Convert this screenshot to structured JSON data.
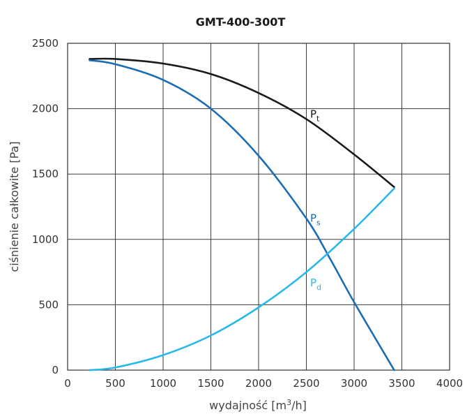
{
  "chart_data": {
    "type": "line",
    "title": "GMT-400-300T",
    "xlabel_prefix": "wydajność [m",
    "xlabel_sup": "3",
    "xlabel_suffix": "/h]",
    "ylabel": "ciśnienie całkowite [Pa]",
    "xlim": [
      0,
      4000
    ],
    "ylim": [
      0,
      2500
    ],
    "x_ticks": [
      0,
      500,
      1000,
      1500,
      2000,
      2500,
      3000,
      3500,
      4000
    ],
    "y_ticks": [
      0,
      500,
      1000,
      1500,
      2000,
      2500
    ],
    "grid": true,
    "series": [
      {
        "name": "Pt",
        "label_main": "P",
        "label_sub": "t",
        "color": "#1a1a1a",
        "x": [
          230,
          500,
          1000,
          1500,
          2000,
          2500,
          3000,
          3420
        ],
        "y": [
          2380,
          2380,
          2345,
          2265,
          2120,
          1920,
          1650,
          1400
        ]
      },
      {
        "name": "Ps",
        "label_main": "P",
        "label_sub": "s",
        "color": "#1a6db5",
        "x": [
          230,
          500,
          1000,
          1500,
          2000,
          2500,
          2750,
          3000,
          3420
        ],
        "y": [
          2370,
          2340,
          2220,
          2000,
          1640,
          1160,
          850,
          520,
          0
        ]
      },
      {
        "name": "Pd",
        "label_main": "P",
        "label_sub": "d",
        "color": "#29b8ea",
        "x": [
          230,
          500,
          1000,
          1500,
          2000,
          2500,
          3000,
          3420
        ],
        "y": [
          0,
          20,
          115,
          265,
          480,
          750,
          1080,
          1390
        ]
      }
    ]
  }
}
